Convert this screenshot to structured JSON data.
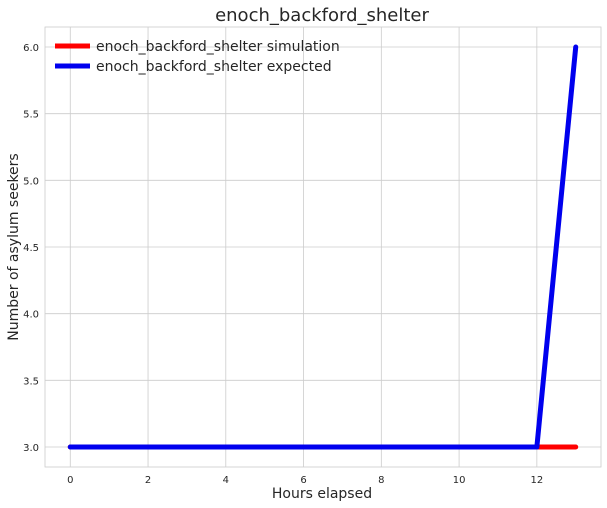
{
  "chart_data": {
    "type": "line",
    "title": "enoch_backford_shelter",
    "xlabel": "Hours elapsed",
    "ylabel": "Number of asylum seekers",
    "xlim": [
      -0.65,
      13.65
    ],
    "ylim": [
      2.85,
      6.15
    ],
    "xticks": [
      0,
      2,
      4,
      6,
      8,
      10,
      12
    ],
    "xtick_labels": [
      "0",
      "2",
      "4",
      "6",
      "8",
      "10",
      "12"
    ],
    "yticks": [
      3.0,
      3.5,
      4.0,
      4.5,
      5.0,
      5.5,
      6.0
    ],
    "ytick_labels": [
      "3.0",
      "3.5",
      "4.0",
      "4.5",
      "5.0",
      "5.5",
      "6.0"
    ],
    "grid": true,
    "legend_position": "top-left",
    "series": [
      {
        "name": "enoch_backford_shelter simulation",
        "color": "#ff0000",
        "x": [
          0,
          1,
          2,
          3,
          4,
          5,
          6,
          7,
          8,
          9,
          10,
          11,
          12,
          13
        ],
        "y": [
          3,
          3,
          3,
          3,
          3,
          3,
          3,
          3,
          3,
          3,
          3,
          3,
          3,
          3
        ]
      },
      {
        "name": "enoch_backford_shelter expected",
        "color": "#0000ee",
        "x": [
          0,
          1,
          2,
          3,
          4,
          5,
          6,
          7,
          8,
          9,
          10,
          11,
          12,
          13
        ],
        "y": [
          3,
          3,
          3,
          3,
          3,
          3,
          3,
          3,
          3,
          3,
          3,
          3,
          3,
          6
        ]
      }
    ]
  }
}
